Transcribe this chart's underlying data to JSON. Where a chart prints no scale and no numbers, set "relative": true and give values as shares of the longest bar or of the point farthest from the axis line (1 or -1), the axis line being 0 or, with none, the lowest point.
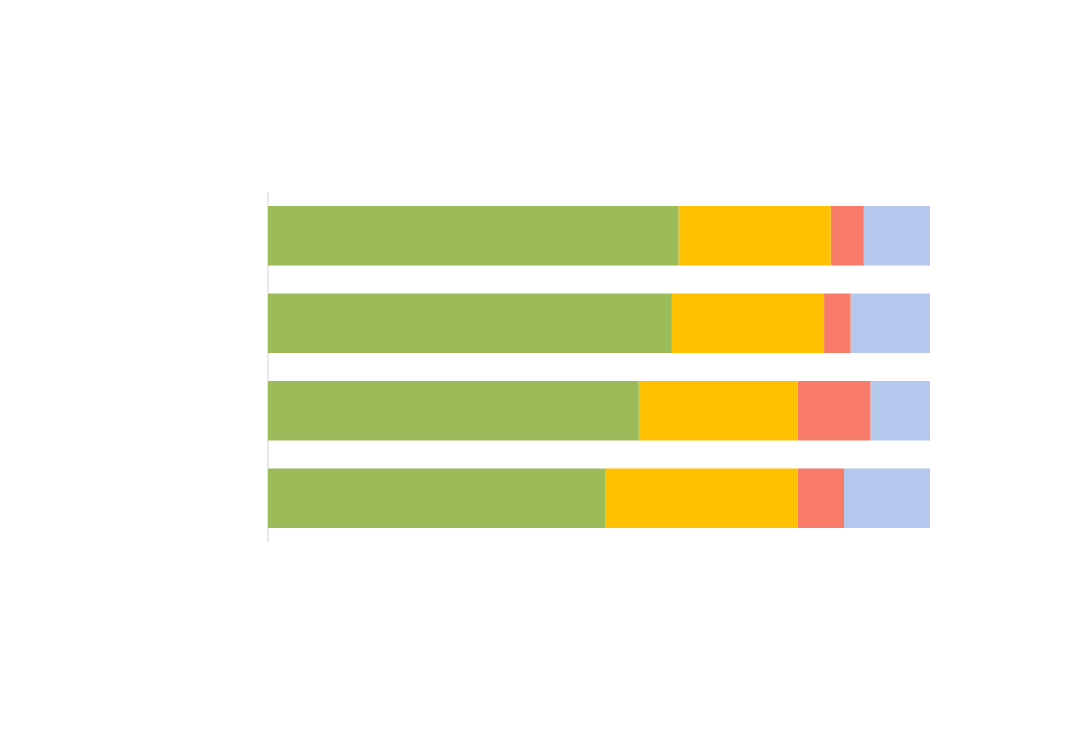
{
  "chart_data": {
    "type": "bar",
    "orientation": "horizontal",
    "stacked": true,
    "relative": true,
    "categories": [
      null,
      null,
      null,
      null
    ],
    "series": [
      {
        "color": "#9bbb59",
        "values": [
          0.62,
          0.61,
          0.56,
          0.51
        ]
      },
      {
        "color": "#ffc000",
        "values": [
          0.23,
          0.23,
          0.24,
          0.29
        ]
      },
      {
        "color": "#f77b68",
        "values": [
          0.05,
          0.04,
          0.11,
          0.07
        ]
      },
      {
        "color": "#b4c7ec",
        "values": [
          0.1,
          0.12,
          0.09,
          0.13
        ]
      }
    ]
  }
}
